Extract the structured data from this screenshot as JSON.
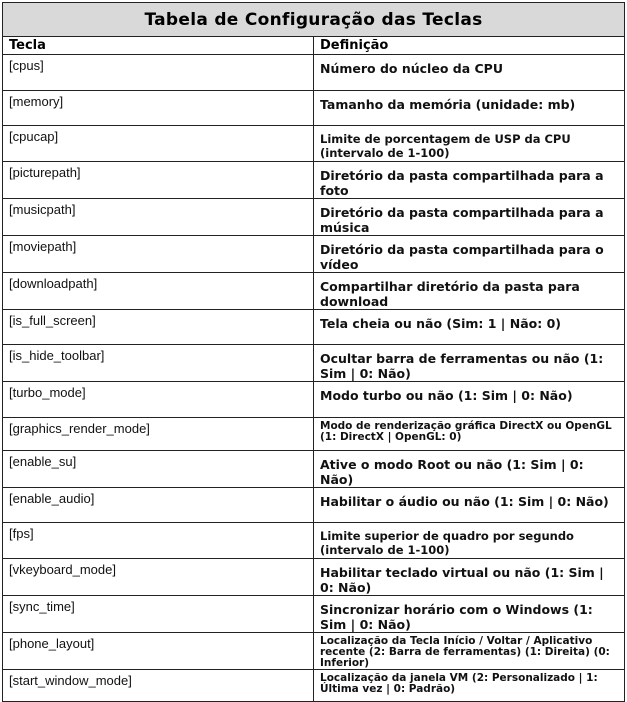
{
  "title": "Tabela de Configuração das Teclas",
  "headers": {
    "key": "Tecla",
    "definition": "Definição"
  },
  "rows": [
    {
      "key": "[cpus]",
      "definition": "Número do núcleo da CPU"
    },
    {
      "key": "[memory]",
      "definition": "Tamanho da memória (unidade: mb)"
    },
    {
      "key": "[cpucap]",
      "definition": "Limite de porcentagem de USP da CPU (intervalo de 1-100)"
    },
    {
      "key": "[picturepath]",
      "definition": "Diretório da pasta compartilhada para a foto"
    },
    {
      "key": "[musicpath]",
      "definition": "Diretório da pasta compartilhada para a música"
    },
    {
      "key": "[moviepath]",
      "definition": "Diretório da pasta compartilhada para o vídeo"
    },
    {
      "key": "[downloadpath]",
      "definition": "Compartilhar diretório da pasta para download"
    },
    {
      "key": "[is_full_screen]",
      "definition": "Tela cheia ou não (Sim: 1 | Não: 0)"
    },
    {
      "key": "[is_hide_toolbar]",
      "definition": "Ocultar barra de ferramentas ou não (1: Sim | 0: Não)"
    },
    {
      "key": "[turbo_mode]",
      "definition": "Modo turbo ou não (1: Sim | 0: Não)"
    },
    {
      "key": "[graphics_render_mode]",
      "definition": "Modo de renderização gráfica DirectX ou OpenGL (1: DirectX | OpenGL: 0)"
    },
    {
      "key": "[enable_su]",
      "definition": "Ative o modo Root ou não (1: Sim | 0: Não)"
    },
    {
      "key": "[enable_audio]",
      "definition": "Habilitar o áudio ou não (1: Sim | 0: Não)"
    },
    {
      "key": "[fps]",
      "definition": "Limite superior de quadro por segundo (intervalo de 1-100)"
    },
    {
      "key": "[vkeyboard_mode]",
      "definition": "Habilitar teclado virtual ou não (1: Sim | 0: Não)"
    },
    {
      "key": "[sync_time]",
      "definition": "Sincronizar horário com o Windows (1: Sim | 0: Não)"
    },
    {
      "key": "[phone_layout]",
      "definition": "Localização da Tecla Início / Voltar / Aplicativo recente (2: Barra de ferramentas) (1: Direita) (0: Inferior)"
    },
    {
      "key": "[start_window_mode]",
      "definition": "Localização da janela VM (2: Personalizado | 1: Última vez | 0: Padrão)"
    }
  ]
}
